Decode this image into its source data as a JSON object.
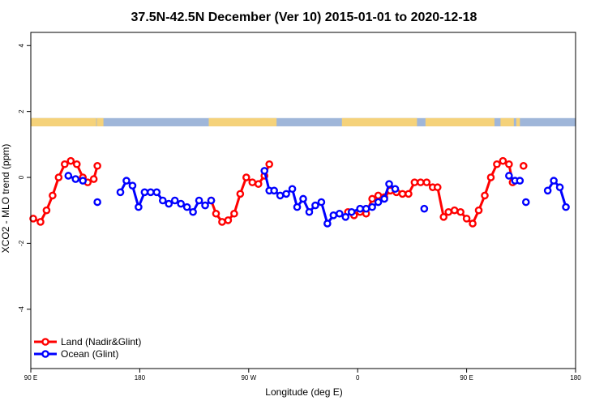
{
  "chart_data": {
    "type": "line",
    "title": "37.5N-42.5N December (Ver 10)   2015-01-01 to 2020-12-18",
    "xlabel": "Longitude (deg E)",
    "ylabel": "XCO2 - MLO trend (ppm)",
    "xlim": [
      90,
      540
    ],
    "ylim": [
      -5.8,
      4.4
    ],
    "x_ticks": [
      {
        "value": 90,
        "label": "90 E"
      },
      {
        "value": 180,
        "label": "180"
      },
      {
        "value": 270,
        "label": "90 W"
      },
      {
        "value": 360,
        "label": "0"
      },
      {
        "value": 450,
        "label": "90 E"
      },
      {
        "value": 540,
        "label": "180"
      }
    ],
    "y_ticks": [
      {
        "value": 4,
        "label": "4"
      },
      {
        "value": 2,
        "label": "2"
      },
      {
        "value": 0,
        "label": "0"
      },
      {
        "value": -2,
        "label": "-2"
      },
      {
        "value": -4,
        "label": "-4"
      }
    ],
    "land_ocean_mask": {
      "y_range": [
        1.55,
        1.8
      ],
      "ocean_color": "#9fb6d9",
      "land_color": "#f5d27a",
      "land_segments": [
        [
          90,
          144
        ],
        [
          144.5,
          150
        ],
        [
          237,
          284
        ],
        [
          285,
          286
        ],
        [
          281,
          293
        ],
        [
          347,
          409
        ],
        [
          416,
          473
        ],
        [
          478,
          489
        ],
        [
          491,
          494
        ]
      ]
    },
    "series": [
      {
        "name": "Land (Nadir&Glint)",
        "color": "#ff0000",
        "segments": [
          [
            [
              92,
              -1.25
            ],
            [
              98,
              -1.35
            ],
            [
              103,
              -1.0
            ],
            [
              108,
              -0.55
            ],
            [
              113,
              0.0
            ],
            [
              118,
              0.4
            ],
            [
              123,
              0.5
            ],
            [
              128,
              0.4
            ],
            [
              133,
              0.0
            ],
            [
              137,
              -0.15
            ],
            [
              142,
              -0.05
            ],
            [
              145,
              0.35
            ]
          ],
          [
            [
              239,
              -0.7
            ],
            [
              243,
              -1.1
            ],
            [
              248,
              -1.35
            ],
            [
              253,
              -1.3
            ],
            [
              258,
              -1.1
            ],
            [
              263,
              -0.5
            ],
            [
              268,
              0.0
            ],
            [
              273,
              -0.15
            ],
            [
              278,
              -0.2
            ],
            [
              283,
              0.05
            ],
            [
              287,
              0.4
            ]
          ],
          [
            [
              352,
              -1.05
            ],
            [
              357,
              -1.15
            ],
            [
              362,
              -1.05
            ],
            [
              367,
              -1.1
            ],
            [
              372,
              -0.65
            ],
            [
              377,
              -0.55
            ],
            [
              382,
              -0.6
            ],
            [
              387,
              -0.4
            ],
            [
              392,
              -0.45
            ],
            [
              397,
              -0.5
            ],
            [
              402,
              -0.5
            ],
            [
              407,
              -0.15
            ],
            [
              412,
              -0.15
            ],
            [
              417,
              -0.15
            ],
            [
              422,
              -0.3
            ],
            [
              426,
              -0.3
            ],
            [
              431,
              -1.2
            ],
            [
              435,
              -1.05
            ],
            [
              440,
              -1.0
            ],
            [
              445,
              -1.05
            ],
            [
              450,
              -1.25
            ],
            [
              455,
              -1.4
            ],
            [
              460,
              -1.0
            ],
            [
              465,
              -0.55
            ],
            [
              470,
              0.0
            ],
            [
              475,
              0.4
            ],
            [
              480,
              0.5
            ],
            [
              485,
              0.4
            ],
            [
              488,
              -0.15
            ]
          ],
          [
            [
              497,
              0.35
            ]
          ]
        ]
      },
      {
        "name": "Ocean (Glint)",
        "color": "#0000ff",
        "segments": [
          [
            [
              121,
              0.05
            ],
            [
              127,
              -0.05
            ],
            [
              133,
              -0.1
            ]
          ],
          [
            [
              145,
              -0.75
            ]
          ],
          [
            [
              164,
              -0.45
            ],
            [
              169,
              -0.1
            ],
            [
              174,
              -0.25
            ],
            [
              179,
              -0.9
            ],
            [
              184,
              -0.45
            ],
            [
              189,
              -0.45
            ],
            [
              194,
              -0.45
            ],
            [
              199,
              -0.7
            ],
            [
              204,
              -0.8
            ],
            [
              209,
              -0.7
            ],
            [
              214,
              -0.8
            ],
            [
              219,
              -0.9
            ],
            [
              224,
              -1.05
            ],
            [
              229,
              -0.7
            ],
            [
              234,
              -0.85
            ],
            [
              239,
              -0.7
            ]
          ],
          [
            [
              283,
              0.2
            ],
            [
              287,
              -0.4
            ],
            [
              291,
              -0.4
            ],
            [
              296,
              -0.55
            ],
            [
              301,
              -0.5
            ],
            [
              306,
              -0.35
            ],
            [
              310,
              -0.9
            ],
            [
              315,
              -0.65
            ],
            [
              320,
              -1.05
            ],
            [
              325,
              -0.85
            ],
            [
              330,
              -0.75
            ],
            [
              335,
              -1.4
            ],
            [
              340,
              -1.15
            ],
            [
              345,
              -1.1
            ],
            [
              350,
              -1.2
            ],
            [
              355,
              -1.05
            ],
            [
              362,
              -0.95
            ],
            [
              367,
              -0.95
            ],
            [
              372,
              -0.9
            ],
            [
              377,
              -0.75
            ],
            [
              382,
              -0.65
            ],
            [
              386,
              -0.2
            ],
            [
              391,
              -0.35
            ]
          ],
          [
            [
              415,
              -0.95
            ]
          ],
          [
            [
              485,
              0.05
            ],
            [
              490,
              -0.1
            ],
            [
              494,
              -0.1
            ]
          ],
          [
            [
              499,
              -0.75
            ]
          ],
          [
            [
              517,
              -0.4
            ],
            [
              522,
              -0.1
            ],
            [
              527,
              -0.3
            ],
            [
              532,
              -0.9
            ]
          ]
        ]
      }
    ],
    "legend": {
      "position": "bottom-left"
    }
  }
}
